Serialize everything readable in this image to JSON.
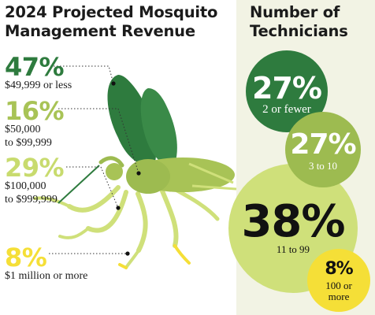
{
  "colors": {
    "dark_green": "#2e7b3e",
    "mid_green": "#9dbb50",
    "light_green": "#cfe07a",
    "yellow": "#f5df37",
    "panel_bg": "#f2f3e4",
    "text": "#1b1b1b"
  },
  "revenue_title": [
    "2024 Projected Mosquito",
    "Management Revenue"
  ],
  "technicians_title": [
    "Number of",
    "Technicians"
  ],
  "chart_data": [
    {
      "type": "pie",
      "title": "2024 Projected Mosquito Management Revenue",
      "unit": "%",
      "categories": [
        "$49,999 or less",
        "$50,000 to $99,999",
        "$100,000 to $999,999",
        "$1 million or more"
      ],
      "values": [
        47,
        16,
        29,
        8
      ],
      "value_labels": [
        "47%",
        "16%",
        "29%",
        "8%"
      ],
      "label_lines": [
        [
          "$49,999 or less"
        ],
        [
          "$50,000",
          "to $99,999"
        ],
        [
          "$100,000",
          "to $999,999"
        ],
        [
          "$1 million or more"
        ]
      ],
      "colors": [
        "#2e7b3e",
        "#a8c356",
        "#cfe07a",
        "#f5df37"
      ]
    },
    {
      "type": "bubble",
      "title": "Number of Technicians",
      "unit": "%",
      "categories": [
        "2 or fewer",
        "3 to 10",
        "11 to 99",
        "100 or more"
      ],
      "values": [
        27,
        27,
        38,
        8
      ],
      "value_labels": [
        "27%",
        "27%",
        "38%",
        "8%"
      ],
      "label_lines": [
        [
          "2 or fewer"
        ],
        [
          "3 to 10"
        ],
        [
          "11 to 99"
        ],
        [
          "100 or",
          "more"
        ]
      ],
      "colors": [
        "#2e7b3e",
        "#9dbb50",
        "#cfe07a",
        "#f5df37"
      ]
    }
  ]
}
